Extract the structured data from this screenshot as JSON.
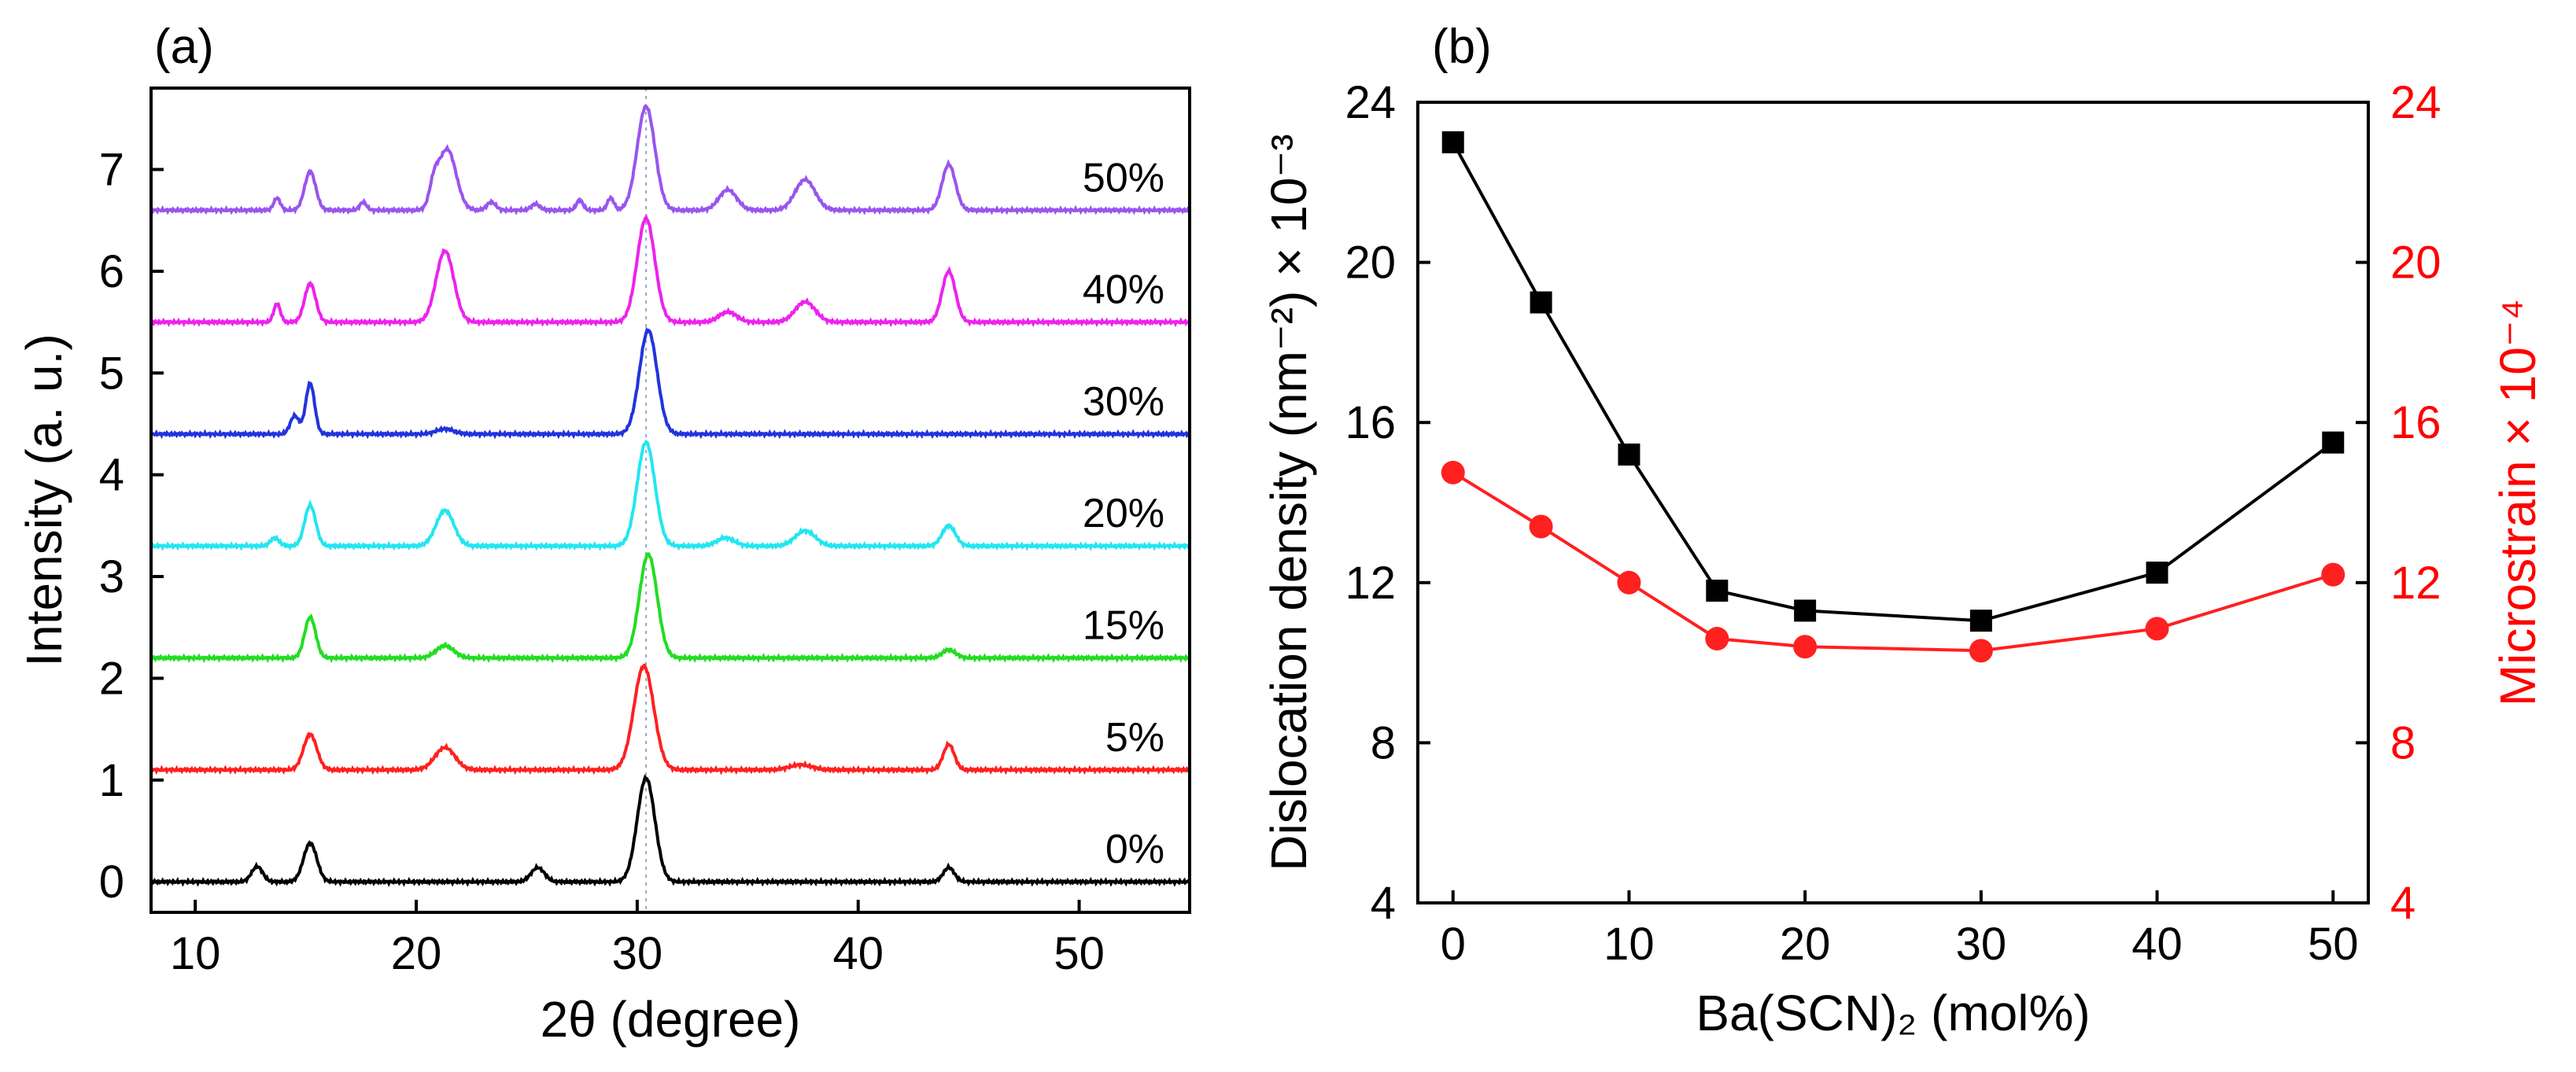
{
  "chart_data": [
    {
      "type": "line",
      "panel_label": "(a)",
      "xlabel": "2θ (degree)",
      "ylabel": "Intensity (a. u.)",
      "xlim": [
        8,
        55
      ],
      "ylim": [
        -0.3,
        7.8
      ],
      "xticks": [
        10,
        20,
        30,
        40,
        50
      ],
      "yticks": [
        0,
        1,
        2,
        3,
        4,
        5,
        6,
        7
      ],
      "reference_line_x": 30.4,
      "series": [
        {
          "name": "0%",
          "offset": 0.0,
          "color": "#000000",
          "peaks": [
            [
              12.8,
              0.15,
              0.25
            ],
            [
              15.2,
              0.38,
              0.3
            ],
            [
              25.5,
              0.14,
              0.3
            ],
            [
              30.4,
              1.02,
              0.4
            ],
            [
              44.1,
              0.14,
              0.25
            ]
          ]
        },
        {
          "name": "5%",
          "offset": 1.1,
          "color": "#ff2020",
          "peaks": [
            [
              15.2,
              0.35,
              0.3
            ],
            [
              21.3,
              0.22,
              0.45
            ],
            [
              30.3,
              1.02,
              0.45
            ],
            [
              37.4,
              0.05,
              0.5
            ],
            [
              44.1,
              0.25,
              0.25
            ]
          ]
        },
        {
          "name": "15%",
          "offset": 2.2,
          "color": "#22dd22",
          "peaks": [
            [
              15.2,
              0.4,
              0.25
            ],
            [
              21.3,
              0.12,
              0.4
            ],
            [
              30.5,
              1.02,
              0.4
            ],
            [
              44.1,
              0.08,
              0.3
            ]
          ]
        },
        {
          "name": "20%",
          "offset": 3.3,
          "color": "#22e6f0",
          "peaks": [
            [
              13.6,
              0.08,
              0.2
            ],
            [
              15.2,
              0.4,
              0.25
            ],
            [
              21.3,
              0.35,
              0.4
            ],
            [
              30.4,
              1.02,
              0.4
            ],
            [
              34.0,
              0.08,
              0.4
            ],
            [
              37.6,
              0.15,
              0.45
            ],
            [
              44.1,
              0.2,
              0.3
            ]
          ]
        },
        {
          "name": "30%",
          "offset": 4.4,
          "color": "#2233dd",
          "peaks": [
            [
              14.5,
              0.18,
              0.2
            ],
            [
              15.2,
              0.5,
              0.2
            ],
            [
              21.3,
              0.05,
              0.4
            ],
            [
              30.5,
              1.02,
              0.4
            ]
          ]
        },
        {
          "name": "40%",
          "offset": 5.5,
          "color": "#ee22ee",
          "peaks": [
            [
              13.7,
              0.18,
              0.15
            ],
            [
              15.2,
              0.38,
              0.25
            ],
            [
              21.3,
              0.7,
              0.4
            ],
            [
              30.4,
              1.02,
              0.4
            ],
            [
              34.1,
              0.1,
              0.4
            ],
            [
              37.6,
              0.2,
              0.45
            ],
            [
              44.1,
              0.5,
              0.3
            ]
          ]
        },
        {
          "name": "50%",
          "offset": 6.6,
          "color": "#9955ee",
          "peaks": [
            [
              13.7,
              0.12,
              0.15
            ],
            [
              15.2,
              0.38,
              0.25
            ],
            [
              17.6,
              0.08,
              0.15
            ],
            [
              20.8,
              0.2,
              0.2
            ],
            [
              21.4,
              0.6,
              0.4
            ],
            [
              23.4,
              0.08,
              0.2
            ],
            [
              25.4,
              0.06,
              0.2
            ],
            [
              27.4,
              0.1,
              0.15
            ],
            [
              28.8,
              0.12,
              0.15
            ],
            [
              30.4,
              1.02,
              0.4
            ],
            [
              34.1,
              0.2,
              0.4
            ],
            [
              37.6,
              0.3,
              0.45
            ],
            [
              44.1,
              0.45,
              0.3
            ]
          ]
        }
      ]
    },
    {
      "type": "line",
      "panel_label": "(b)",
      "xlabel": "Ba(SCN)₂ (mol%)",
      "ylabel": "Dislocation density (nm⁻²) × 10⁻³",
      "ylabel_right": "Microstrain × 10⁻⁴",
      "xlim": [
        -2,
        52
      ],
      "ylim": [
        4,
        24
      ],
      "ylim_right": [
        4,
        24
      ],
      "xticks": [
        0,
        10,
        20,
        30,
        40,
        50
      ],
      "yticks": [
        4,
        8,
        12,
        16,
        20,
        24
      ],
      "yticks_right": [
        4,
        8,
        12,
        16,
        20,
        24
      ],
      "x": [
        0,
        5,
        10,
        15,
        20,
        30,
        40,
        50
      ],
      "series": [
        {
          "name": "Dislocation density",
          "axis": "left",
          "marker": "square",
          "color": "#000000",
          "values": [
            23.0,
            19.0,
            15.2,
            11.8,
            11.3,
            11.05,
            12.25,
            15.5
          ]
        },
        {
          "name": "Microstrain",
          "axis": "right",
          "marker": "circle",
          "color": "#ff2020",
          "values": [
            14.75,
            13.4,
            12.0,
            10.6,
            10.4,
            10.3,
            10.85,
            12.2
          ]
        }
      ]
    }
  ]
}
